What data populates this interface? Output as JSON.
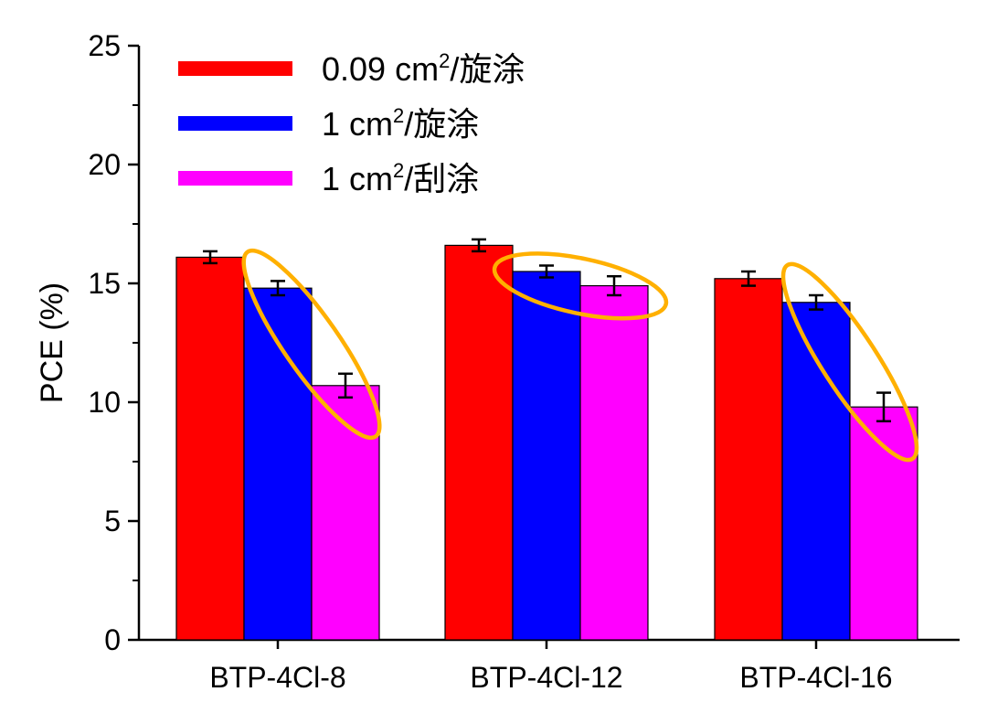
{
  "chart_data": {
    "type": "bar",
    "categories": [
      "BTP-4Cl-8",
      "BTP-4Cl-12",
      "BTP-4Cl-16"
    ],
    "ylabel": "PCE (%)",
    "ylim": [
      0,
      25
    ],
    "yticks": [
      "0",
      "5",
      "10",
      "15",
      "20",
      "25"
    ],
    "legend_position": "top-left",
    "grid": false,
    "series": [
      {
        "legend_parts": [
          "0.09 cm",
          "2",
          "/旋涂"
        ],
        "color": "#ff0000",
        "values": [
          16.1,
          16.6,
          15.2
        ],
        "errors": [
          0.25,
          0.25,
          0.3
        ]
      },
      {
        "legend_parts": [
          "1 cm",
          "2",
          "/旋涂"
        ],
        "color": "#0000ff",
        "values": [
          14.8,
          15.5,
          14.2
        ],
        "errors": [
          0.3,
          0.25,
          0.3
        ]
      },
      {
        "legend_parts": [
          "1 cm",
          "2",
          "/刮涂"
        ],
        "color": "#ff00ff",
        "values": [
          10.7,
          14.9,
          9.8
        ],
        "errors": [
          0.5,
          0.4,
          0.6
        ]
      }
    ],
    "annotation_color": "#ffb000"
  }
}
